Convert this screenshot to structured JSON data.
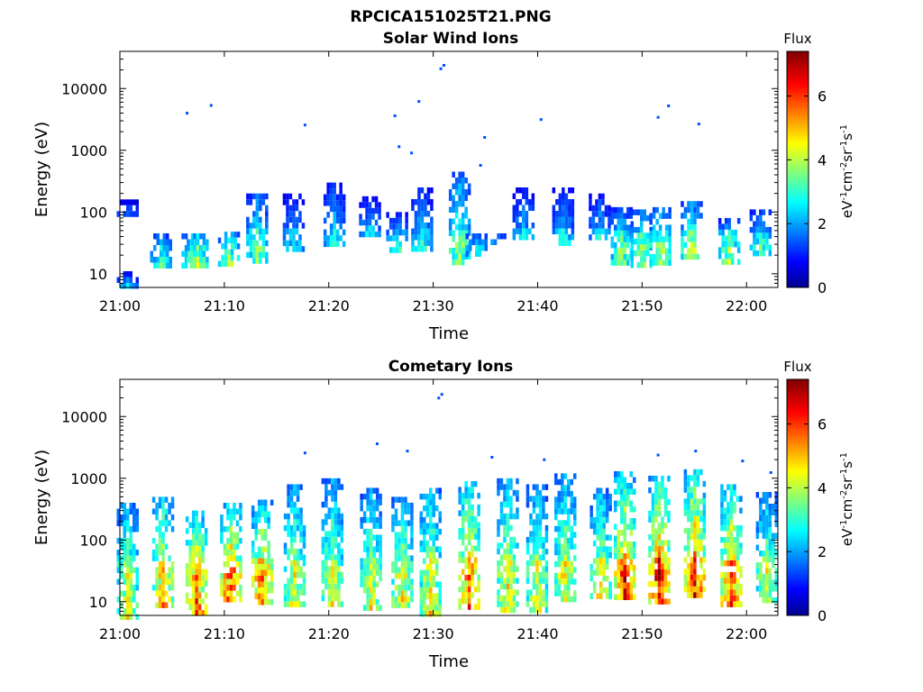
{
  "figure": {
    "title": "RPCICA151025T21.PNG"
  },
  "chart_data": [
    {
      "type": "heatmap",
      "title": "Solar Wind Ions",
      "xlabel": "Time",
      "ylabel": "Energy (eV)",
      "xlim": [
        "21:00",
        "22:03"
      ],
      "ylim": [
        6,
        40000
      ],
      "y_scale": "log",
      "x_ticks": [
        "21:00",
        "21:10",
        "21:20",
        "21:30",
        "21:40",
        "21:50",
        "22:00"
      ],
      "y_ticks": [
        "10",
        "100",
        "1000",
        "10000"
      ],
      "colorbar": {
        "label": "Flux",
        "unit": "eV-1cm-2sr-1s-1",
        "range": [
          0,
          7.4
        ],
        "ticks": [
          "0",
          "2",
          "4",
          "6"
        ],
        "colormap": "jet"
      },
      "bursts": [
        {
          "t": 0.6,
          "e": [
            7,
            11
          ],
          "v": 2.5
        },
        {
          "t": 0.6,
          "e": [
            90,
            160
          ],
          "v": 2.1
        },
        {
          "t": 3.8,
          "e": [
            15,
            45
          ],
          "v": 3.3
        },
        {
          "t": 6.8,
          "e": [
            13,
            45
          ],
          "v": 4.2
        },
        {
          "t": 7.3,
          "e": [
            13,
            45
          ],
          "v": 4.6
        },
        {
          "t": 10.3,
          "e": [
            14,
            48
          ],
          "v": 4.3
        },
        {
          "t": 13.0,
          "e": [
            15,
            200
          ],
          "v": 3.7
        },
        {
          "t": 16.5,
          "e": [
            25,
            200
          ],
          "v": 2.5
        },
        {
          "t": 20.4,
          "e": [
            30,
            300
          ],
          "v": 2.7
        },
        {
          "t": 23.8,
          "e": [
            45,
            180
          ],
          "v": 2.6
        },
        {
          "t": 26.4,
          "e": [
            25,
            100
          ],
          "v": 2.9
        },
        {
          "t": 28.8,
          "e": [
            25,
            250
          ],
          "v": 2.8
        },
        {
          "t": 32.4,
          "e": [
            14,
            450
          ],
          "v": 3.9
        },
        {
          "t": 34.0,
          "e": [
            20,
            45
          ],
          "v": 3.3
        },
        {
          "t": 36.4,
          "e": [
            30,
            45
          ],
          "v": 3.0
        },
        {
          "t": 38.5,
          "e": [
            40,
            250
          ],
          "v": 2.5
        },
        {
          "t": 42.3,
          "e": [
            35,
            250
          ],
          "v": 2.6
        },
        {
          "t": 45.8,
          "e": [
            35,
            200
          ],
          "v": 2.6
        },
        {
          "t": 47.9,
          "e": [
            15,
            120
          ],
          "v": 3.8
        },
        {
          "t": 49.8,
          "e": [
            15,
            110
          ],
          "v": 4.0
        },
        {
          "t": 51.6,
          "e": [
            15,
            120
          ],
          "v": 4.2
        },
        {
          "t": 54.6,
          "e": [
            18,
            150
          ],
          "v": 4.1
        },
        {
          "t": 58.2,
          "e": [
            15,
            80
          ],
          "v": 4.0
        },
        {
          "t": 61.2,
          "e": [
            20,
            110
          ],
          "v": 3.3
        }
      ],
      "dots": [
        {
          "t": 6.3,
          "e": 4200
        },
        {
          "t": 8.6,
          "e": 5600
        },
        {
          "t": 17.6,
          "e": 2700
        },
        {
          "t": 26.2,
          "e": 3800
        },
        {
          "t": 28.5,
          "e": 6500
        },
        {
          "t": 30.6,
          "e": 22000
        },
        {
          "t": 30.9,
          "e": 25000
        },
        {
          "t": 34.8,
          "e": 1700
        },
        {
          "t": 34.4,
          "e": 600
        },
        {
          "t": 40.2,
          "e": 3300
        },
        {
          "t": 51.4,
          "e": 3600
        },
        {
          "t": 52.4,
          "e": 5500
        },
        {
          "t": 55.3,
          "e": 2800
        },
        {
          "t": 26.6,
          "e": 1200
        },
        {
          "t": 27.8,
          "e": 950
        }
      ]
    },
    {
      "type": "heatmap",
      "title": "Cometary Ions",
      "xlabel": "Time",
      "ylabel": "Energy (eV)",
      "xlim": [
        "21:00",
        "22:03"
      ],
      "ylim": [
        6,
        40000
      ],
      "y_scale": "log",
      "x_ticks": [
        "21:00",
        "21:10",
        "21:20",
        "21:30",
        "21:40",
        "21:50",
        "22:00"
      ],
      "y_ticks": [
        "10",
        "100",
        "1000",
        "10000"
      ],
      "colorbar": {
        "label": "Flux",
        "unit": "eV-1cm-2sr-1s-1",
        "range": [
          0,
          7.4
        ],
        "ticks": [
          "0",
          "2",
          "4",
          "6"
        ],
        "colormap": "jet"
      },
      "bursts": [
        {
          "t": 0.6,
          "e": [
            6,
            400
          ],
          "v": 4.6
        },
        {
          "t": 4.0,
          "e": [
            8,
            500
          ],
          "v": 5.5
        },
        {
          "t": 7.2,
          "e": [
            6,
            300
          ],
          "v": 6.2
        },
        {
          "t": 10.5,
          "e": [
            10,
            400
          ],
          "v": 6.3
        },
        {
          "t": 13.5,
          "e": [
            10,
            450
          ],
          "v": 5.8
        },
        {
          "t": 16.6,
          "e": [
            10,
            800
          ],
          "v": 4.6
        },
        {
          "t": 20.2,
          "e": [
            10,
            1000
          ],
          "v": 4.6
        },
        {
          "t": 23.9,
          "e": [
            8,
            700
          ],
          "v": 4.6
        },
        {
          "t": 26.9,
          "e": [
            8,
            500
          ],
          "v": 5.0
        },
        {
          "t": 29.6,
          "e": [
            6,
            700
          ],
          "v": 5.0
        },
        {
          "t": 33.3,
          "e": [
            8,
            900
          ],
          "v": 6.0
        },
        {
          "t": 37.0,
          "e": [
            8,
            1000
          ],
          "v": 5.0
        },
        {
          "t": 39.8,
          "e": [
            8,
            800
          ],
          "v": 4.6
        },
        {
          "t": 42.5,
          "e": [
            10,
            1200
          ],
          "v": 4.8
        },
        {
          "t": 45.9,
          "e": [
            12,
            700
          ],
          "v": 4.8
        },
        {
          "t": 48.2,
          "e": [
            12,
            1300
          ],
          "v": 6.1
        },
        {
          "t": 51.5,
          "e": [
            10,
            1100
          ],
          "v": 6.5
        },
        {
          "t": 54.9,
          "e": [
            12,
            1400
          ],
          "v": 6.5
        },
        {
          "t": 58.4,
          "e": [
            10,
            800
          ],
          "v": 6.2
        },
        {
          "t": 61.8,
          "e": [
            10,
            600
          ],
          "v": 4.5
        }
      ],
      "dots": [
        {
          "t": 17.6,
          "e": 2700
        },
        {
          "t": 24.5,
          "e": 3800
        },
        {
          "t": 27.4,
          "e": 2900
        },
        {
          "t": 30.4,
          "e": 21000
        },
        {
          "t": 30.7,
          "e": 24000
        },
        {
          "t": 35.5,
          "e": 2300
        },
        {
          "t": 40.5,
          "e": 2100
        },
        {
          "t": 51.4,
          "e": 2500
        },
        {
          "t": 55.0,
          "e": 2900
        },
        {
          "t": 59.5,
          "e": 2000
        },
        {
          "t": 62.2,
          "e": 1300
        }
      ]
    }
  ]
}
